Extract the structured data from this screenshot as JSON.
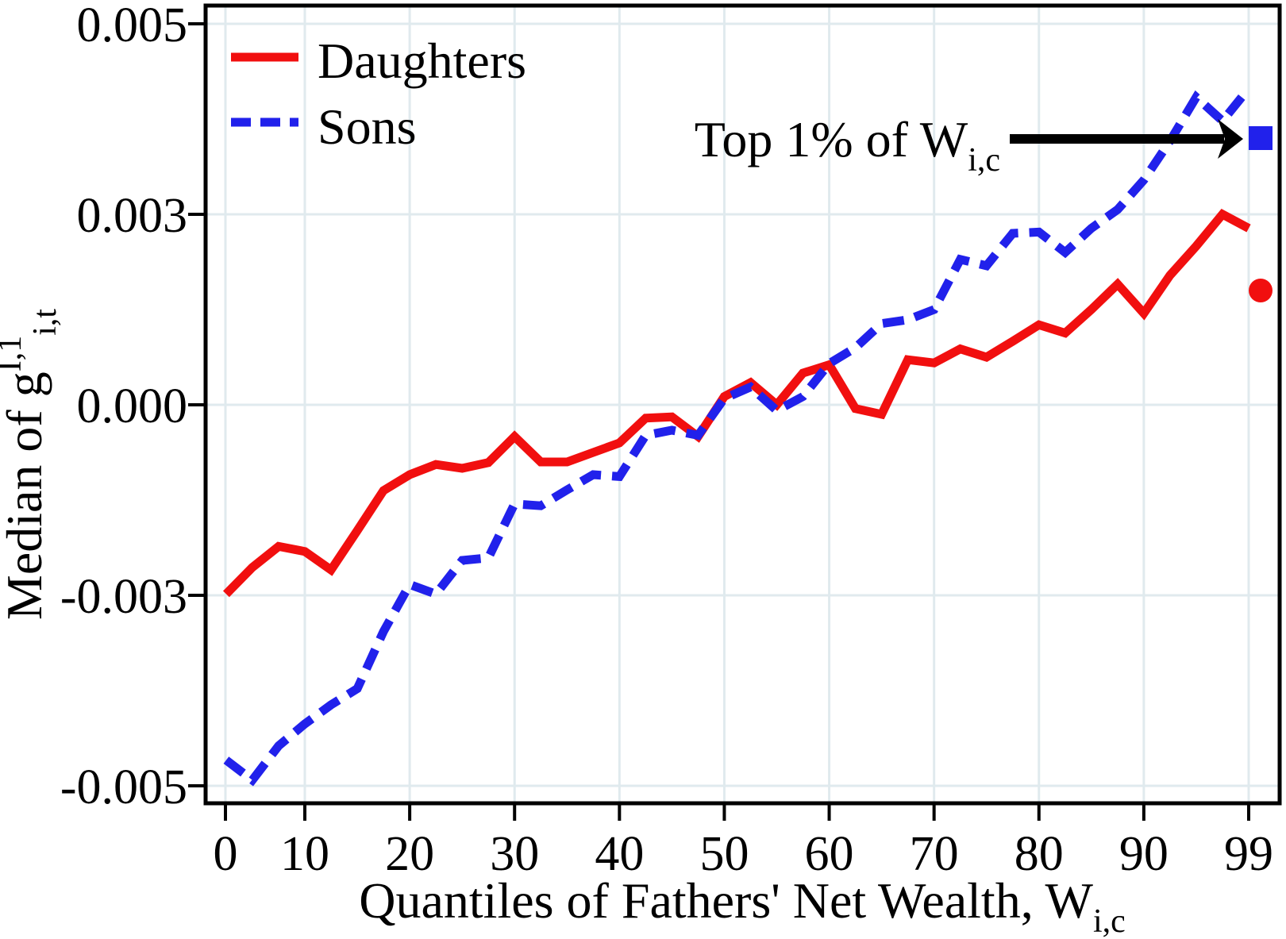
{
  "figure": {
    "legend": {
      "items": [
        {
          "id": "daughters",
          "label": "Daughters"
        },
        {
          "id": "sons",
          "label": "Sons"
        }
      ]
    },
    "annotation": {
      "text": "Top 1% of W",
      "sub": "i,c"
    },
    "x_axis": {
      "title": {
        "text": "Quantiles of Fathers' Net Wealth, W",
        "sub": "i,c"
      }
    },
    "y_axis": {
      "title": {
        "text": "Median of g",
        "sup": "I,1",
        "sub": "i,t"
      }
    }
  },
  "chart_data": {
    "type": "line",
    "title": "",
    "xlabel": "Quantiles of Fathers' Net Wealth, W_{i,c}",
    "ylabel": "Median of g^{I,1}_{i,t}",
    "legend_position": "top-left",
    "grid": true,
    "x_tick_labels": [
      "0",
      "10",
      "20",
      "30",
      "40",
      "50",
      "60",
      "70",
      "80",
      "90",
      "99"
    ],
    "y_tick_labels": [
      "0.005",
      "0.003",
      "0.000",
      "-0.003",
      "-0.005"
    ],
    "y_tick_values": [
      0.005,
      0.003,
      0,
      -0.003,
      -0.005
    ],
    "x": [
      2.5,
      5,
      7.5,
      10,
      12.5,
      15,
      17.5,
      20,
      22.5,
      25,
      27.5,
      30,
      32.5,
      35,
      37.5,
      40,
      42.5,
      45,
      47.5,
      50,
      52.5,
      55,
      57.5,
      60,
      62.5,
      65,
      67.5,
      70,
      72.5,
      75,
      77.5,
      80,
      82.5,
      85,
      87.5,
      90,
      92.5,
      95,
      97.5,
      100
    ],
    "series": [
      {
        "name": "Daughters",
        "color": "#f10f0f",
        "style": "solid",
        "values": [
          -0.00298,
          -0.00256,
          -0.00223,
          -0.00231,
          -0.0026,
          -0.00198,
          -0.00135,
          -0.0011,
          -0.00094,
          -0.001,
          -0.00091,
          -0.0005,
          -0.0009,
          -0.0009,
          -0.00075,
          -0.0006,
          -0.00021,
          -0.00019,
          -0.0005,
          0.00013,
          0.00035,
          0,
          0.0005,
          0.00063,
          -6e-05,
          -0.00015,
          0.00071,
          0.00066,
          0.00088,
          0.00075,
          0.001,
          0.00126,
          0.00113,
          0.0015,
          0.0019,
          0.00144,
          0.00204,
          0.0025,
          0.003,
          0.00278
        ]
      },
      {
        "name": "Sons",
        "color": "#2121eb",
        "style": "dashed",
        "values": [
          -0.00473,
          -0.00494,
          -0.00458,
          -0.00435,
          -0.00415,
          -0.00398,
          -0.00338,
          -0.00283,
          -0.00298,
          -0.00245,
          -0.00241,
          -0.00156,
          -0.00159,
          -0.00134,
          -0.0011,
          -0.00113,
          -0.00048,
          -0.0004,
          -0.00048,
          0.0001,
          0.00028,
          -9e-05,
          0.00013,
          0.00065,
          0.0009,
          0.00128,
          0.00134,
          0.0015,
          0.00229,
          0.00219,
          0.0027,
          0.00272,
          0.0024,
          0.00278,
          0.00305,
          0.00336,
          0.00377,
          0.00423,
          0.00398,
          0.00432
        ]
      }
    ],
    "top1_markers": [
      {
        "series": "Sons",
        "shape": "square",
        "color": "#2121eb",
        "value": 0.0038
      },
      {
        "series": "Daughters",
        "shape": "circle",
        "color": "#f10f0f",
        "value": 0.0018
      }
    ]
  },
  "colors": {
    "grid": "#e0eaee",
    "axis": "#000000",
    "background": "#ffffff",
    "annotation_arrow": "#000000"
  }
}
